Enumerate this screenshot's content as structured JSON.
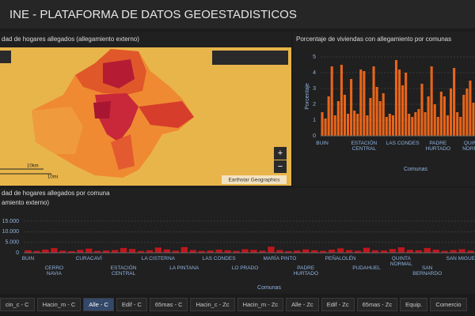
{
  "header": {
    "title": "INE - PLATAFORMA DE DATOS GEOESTADISTICOS"
  },
  "map": {
    "title": "dad de hogares allegados (allegamiento externo)",
    "attribution": "Earthstar Geographics",
    "scale_km": "10km",
    "scale_mi": "10mi",
    "zoom_in": "+",
    "zoom_out": "−"
  },
  "chart_data": [
    {
      "type": "bar",
      "title": "Porcentaje de viviendas con allegamiento por comunas",
      "y_label": "Porcentaje",
      "x_label": "Comunas",
      "color": "#e8651a",
      "grid": true,
      "ylim": [
        0,
        5
      ],
      "yticks": [
        0,
        1,
        2,
        3,
        4,
        5
      ],
      "categories": [
        "BUIN",
        null,
        null,
        null,
        null,
        null,
        null,
        null,
        null,
        null,
        null,
        null,
        null,
        "ESTACIÓN CENTRAL",
        null,
        null,
        null,
        null,
        null,
        null,
        null,
        null,
        null,
        null,
        null,
        "LAS CONDES",
        null,
        null,
        null,
        null,
        null,
        null,
        null,
        null,
        null,
        null,
        "PADRE HURTADO",
        null,
        null,
        null,
        null,
        null,
        null,
        null,
        null,
        null,
        null,
        "QUINTA NORMAL"
      ],
      "values": [
        1.5,
        1.1,
        2.5,
        4.4,
        1.3,
        2.2,
        4.5,
        2.6,
        1.4,
        3.6,
        1.6,
        1.4,
        4.2,
        4.1,
        1.3,
        2.4,
        4.4,
        3.1,
        2.2,
        2.7,
        1.2,
        1.4,
        1.3,
        4.8,
        4.2,
        3.2,
        4.0,
        1.4,
        1.2,
        1.5,
        1.7,
        3.3,
        1.5,
        2.5,
        4.4,
        2.0,
        1.2,
        2.8,
        2.5,
        1.3,
        3.0,
        4.3,
        1.5,
        1.2,
        2.6,
        3.0,
        3.5,
        2.1
      ]
    },
    {
      "type": "bar",
      "title": "dad de hogares allegados por comuna",
      "subtitle": "amiento externo)",
      "x_label": "Comunas",
      "color": "#c0161d",
      "grid": true,
      "ylim": [
        0,
        15000
      ],
      "yticks": [
        0,
        {
          "value": 5000,
          "label": "5.000"
        },
        {
          "value": 10000,
          "label": "10.000"
        },
        {
          "value": 15000,
          "label": "15.000"
        }
      ],
      "categories": [
        "BUIN",
        null,
        null,
        "CERRO NAVIA",
        null,
        null,
        null,
        "CURACAVÍ",
        null,
        null,
        null,
        "ESTACIÓN CENTRAL",
        null,
        null,
        null,
        "LA CISTERNA",
        null,
        null,
        "LA PINTANA",
        null,
        null,
        null,
        "LAS CONDES",
        null,
        null,
        "LO PRADO",
        null,
        null,
        null,
        "MARÍA PINTO",
        null,
        null,
        "PADRE HURTADO",
        null,
        null,
        null,
        "PEÑALOLÉN",
        null,
        null,
        "PUDAHUEL",
        null,
        null,
        null,
        "QUINTA NORMAL",
        null,
        null,
        "SAN BERNARDO",
        null,
        null,
        null,
        "SAN MIGUEL",
        null
      ],
      "values": [
        1200,
        900,
        1500,
        2200,
        1000,
        800,
        1400,
        2000,
        900,
        1100,
        1300,
        2300,
        1800,
        900,
        1200,
        2500,
        1600,
        1000,
        2700,
        1300,
        900,
        1100,
        1500,
        1200,
        900,
        1700,
        1400,
        1000,
        2900,
        1300,
        800,
        1100,
        1600,
        1200,
        900,
        1500,
        2100,
        1300,
        1000,
        2400,
        1200,
        1100,
        1800,
        2600,
        1400,
        1200,
        2300,
        1500,
        900,
        1300,
        1700,
        1100
      ]
    }
  ],
  "tabs": [
    "cin_c - C",
    "Hacin_m - C",
    "Alle - C",
    "Edif - C",
    "65mas - C",
    "Hacin_c - Zc",
    "Hacin_m - Zc",
    "Alle - Zc",
    "Edif - Zc",
    "65mas - Zc",
    "Equip.",
    "Comercio"
  ]
}
